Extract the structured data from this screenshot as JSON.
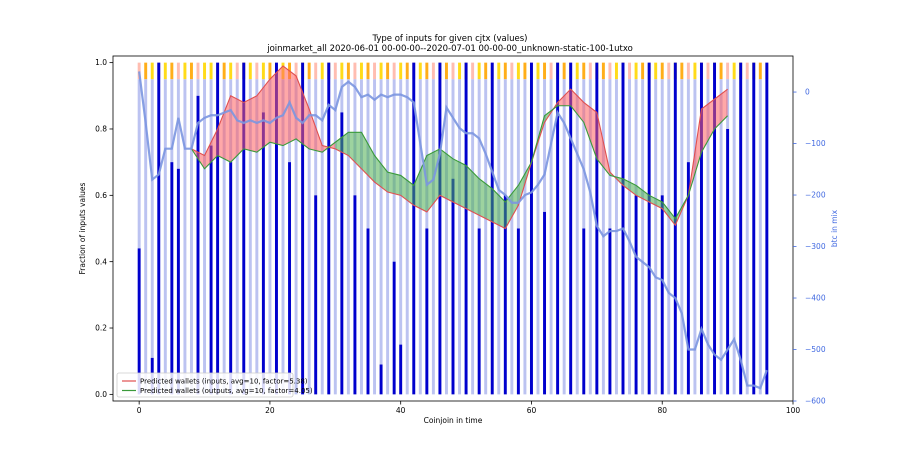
{
  "chart_data": {
    "type": "bar",
    "title": "Type of inputs for given cjtx (values)",
    "subtitle": "joinmarket_all 2020-06-01 00-00-00--2020-07-01 00-00-00_unknown-static-100-1utxo",
    "xlabel": "Coinjoin in time",
    "ylabel": "Fraction of inputs values",
    "ylabel_right": "btc in mix",
    "xlim": [
      -4,
      100
    ],
    "ylim": [
      -0.02,
      1.02
    ],
    "ylim_right": [
      -600,
      70
    ],
    "x_ticks": [
      0,
      20,
      40,
      60,
      80,
      100
    ],
    "y_ticks": [
      0.0,
      0.2,
      0.4,
      0.6,
      0.8,
      1.0
    ],
    "y_ticks_labels": [
      "0.0",
      "0.2",
      "0.4",
      "0.6",
      "0.8",
      "1.0"
    ],
    "y_ticks_right": [
      0,
      -100,
      -200,
      -300,
      -400,
      -500,
      -600
    ],
    "y_ticks_right_labels": [
      "0",
      "−100",
      "−200",
      "−300",
      "−400",
      "−500",
      "−600"
    ],
    "legend_position": "lower-left",
    "colors": {
      "fresh": "#0000cd",
      "remix": "#b0b8ee",
      "yellow": "#ffd700",
      "orange": "#ffa500",
      "pink": "#ffb6a8",
      "inputs_line": "#e05050",
      "outputs_line": "#3a9a3a",
      "fill_red": "#ff6060",
      "fill_green": "#4caf50",
      "btc_line": "#7b96e0",
      "right_axis": "#4169e1"
    },
    "bars_fresh": [
      0.44,
      0.0,
      0.11,
      1.0,
      0.0,
      0.7,
      0.68,
      0.0,
      0.0,
      0.9,
      0.0,
      0.75,
      1.0,
      0.0,
      0.7,
      0.0,
      1.0,
      0.0,
      0.0,
      0.85,
      0.0,
      1.0,
      0.0,
      0.7,
      0.0,
      1.0,
      0.0,
      0.6,
      0.0,
      1.0,
      0.0,
      0.85,
      0.0,
      0.6,
      0.0,
      0.5,
      0.0,
      0.09,
      0.0,
      0.4,
      0.15,
      0.0,
      1.0,
      0.0,
      0.5,
      0.0,
      1.0,
      0.0,
      0.65,
      0.0,
      1.0,
      0.0,
      0.5,
      0.0,
      1.0,
      0.0,
      0.6,
      0.0,
      0.5,
      0.0,
      1.0,
      0.0,
      0.55,
      0.0,
      1.0,
      0.0,
      1.0,
      0.0,
      0.5,
      0.0,
      1.0,
      0.0,
      0.5,
      0.0,
      1.0,
      0.0,
      0.6,
      0.0,
      1.0,
      0.0,
      0.6,
      0.0,
      1.0,
      0.0,
      0.7,
      0.0,
      1.0,
      0.0,
      1.0,
      0.0,
      0.8,
      0.0,
      1.0,
      0.0,
      1.0,
      0.0,
      1.0
    ],
    "bars_top": [
      "pink",
      "orange",
      "yellow",
      "pink",
      "yellow",
      "orange",
      "pink",
      "yellow",
      "orange",
      "pink",
      "yellow",
      "yellow",
      "pink",
      "orange",
      "yellow",
      "pink",
      "orange",
      "yellow",
      "pink",
      "yellow",
      "orange",
      "pink",
      "yellow",
      "orange",
      "pink",
      "yellow",
      "orange",
      "pink",
      "yellow",
      "orange",
      "pink",
      "yellow",
      "orange",
      "pink",
      "yellow",
      "orange",
      "pink",
      "yellow",
      "orange",
      "pink",
      "yellow",
      "orange",
      "pink",
      "yellow",
      "orange",
      "pink",
      "yellow",
      "orange",
      "pink",
      "yellow",
      "orange",
      "pink",
      "yellow",
      "orange",
      "pink",
      "yellow",
      "orange",
      "pink",
      "yellow",
      "orange",
      "pink",
      "yellow",
      "orange",
      "pink",
      "yellow",
      "orange",
      "pink",
      "yellow",
      "orange",
      "pink",
      "yellow",
      "orange",
      "pink",
      "yellow",
      "orange",
      "pink",
      "yellow",
      "orange",
      "pink",
      "yellow",
      "orange",
      "pink",
      "yellow",
      "orange",
      "pink",
      "yellow",
      "orange",
      "pink",
      "yellow",
      "orange",
      "pink",
      "yellow",
      "orange",
      "pink",
      "yellow",
      "orange",
      "pink"
    ],
    "series": [
      {
        "name": "Predicted wallets (inputs, avg=10, factor=5.38)",
        "x": [
          8,
          10,
          12,
          14,
          16,
          18,
          20,
          22,
          24,
          26,
          28,
          30,
          32,
          34,
          36,
          38,
          40,
          42,
          44,
          46,
          48,
          50,
          52,
          54,
          56,
          58,
          60,
          62,
          64,
          66,
          68,
          70,
          72,
          74,
          76,
          78,
          80,
          82,
          84,
          86,
          88,
          90
        ],
        "values": [
          0.74,
          0.72,
          0.8,
          0.9,
          0.88,
          0.9,
          0.95,
          0.99,
          0.96,
          0.86,
          0.75,
          0.74,
          0.72,
          0.68,
          0.64,
          0.61,
          0.6,
          0.57,
          0.55,
          0.6,
          0.58,
          0.56,
          0.54,
          0.52,
          0.5,
          0.57,
          0.7,
          0.82,
          0.88,
          0.92,
          0.88,
          0.85,
          0.67,
          0.63,
          0.6,
          0.58,
          0.56,
          0.51,
          0.6,
          0.86,
          0.89,
          0.92
        ]
      },
      {
        "name": "Predicted wallets (outputs, avg=10, factor=4.05)",
        "x": [
          8,
          10,
          12,
          14,
          16,
          18,
          20,
          22,
          24,
          26,
          28,
          30,
          32,
          34,
          36,
          38,
          40,
          42,
          44,
          46,
          48,
          50,
          52,
          54,
          56,
          58,
          60,
          62,
          64,
          66,
          68,
          70,
          72,
          74,
          76,
          78,
          80,
          82,
          84,
          86,
          88,
          90
        ],
        "values": [
          0.74,
          0.68,
          0.72,
          0.7,
          0.74,
          0.73,
          0.76,
          0.75,
          0.77,
          0.74,
          0.73,
          0.76,
          0.79,
          0.79,
          0.72,
          0.67,
          0.66,
          0.63,
          0.72,
          0.74,
          0.71,
          0.69,
          0.65,
          0.62,
          0.58,
          0.63,
          0.7,
          0.84,
          0.87,
          0.87,
          0.82,
          0.71,
          0.66,
          0.65,
          0.63,
          0.6,
          0.58,
          0.53,
          0.6,
          0.73,
          0.8,
          0.84
        ]
      },
      {
        "name": "btc in mix",
        "x": [
          0,
          1,
          2,
          3,
          4,
          5,
          6,
          7,
          8,
          9,
          10,
          11,
          12,
          13,
          14,
          15,
          16,
          17,
          18,
          19,
          20,
          21,
          22,
          23,
          24,
          25,
          26,
          27,
          28,
          29,
          30,
          31,
          32,
          33,
          34,
          35,
          36,
          37,
          38,
          39,
          40,
          41,
          42,
          43,
          44,
          45,
          46,
          47,
          48,
          49,
          50,
          51,
          52,
          53,
          54,
          55,
          56,
          57,
          58,
          59,
          60,
          61,
          62,
          63,
          64,
          65,
          66,
          67,
          68,
          69,
          70,
          71,
          72,
          73,
          74,
          75,
          76,
          77,
          78,
          79,
          80,
          81,
          82,
          83,
          84,
          85,
          86,
          87,
          88,
          89,
          90,
          91,
          92,
          93,
          94,
          95,
          96
        ],
        "values": [
          40,
          -60,
          -170,
          -160,
          -110,
          -110,
          -50,
          -110,
          -110,
          -60,
          -50,
          -45,
          -45,
          -40,
          -35,
          -55,
          -60,
          -55,
          -60,
          -55,
          -60,
          -50,
          -45,
          -20,
          -50,
          -60,
          -45,
          -45,
          -55,
          -25,
          -35,
          10,
          20,
          10,
          -10,
          -5,
          -15,
          -5,
          -10,
          -5,
          -5,
          -10,
          -20,
          -100,
          -180,
          -170,
          -120,
          -30,
          -50,
          -70,
          -80,
          -80,
          -90,
          -120,
          -155,
          -190,
          -200,
          -215,
          -215,
          -200,
          -195,
          -180,
          -160,
          -100,
          -40,
          -60,
          -90,
          -120,
          -150,
          -195,
          -260,
          -280,
          -270,
          -270,
          -265,
          -290,
          -320,
          -330,
          -340,
          -360,
          -365,
          -390,
          -400,
          -430,
          -500,
          -500,
          -460,
          -490,
          -510,
          -520,
          -500,
          -480,
          -520,
          -570,
          -570,
          -575,
          -540
        ]
      }
    ]
  }
}
